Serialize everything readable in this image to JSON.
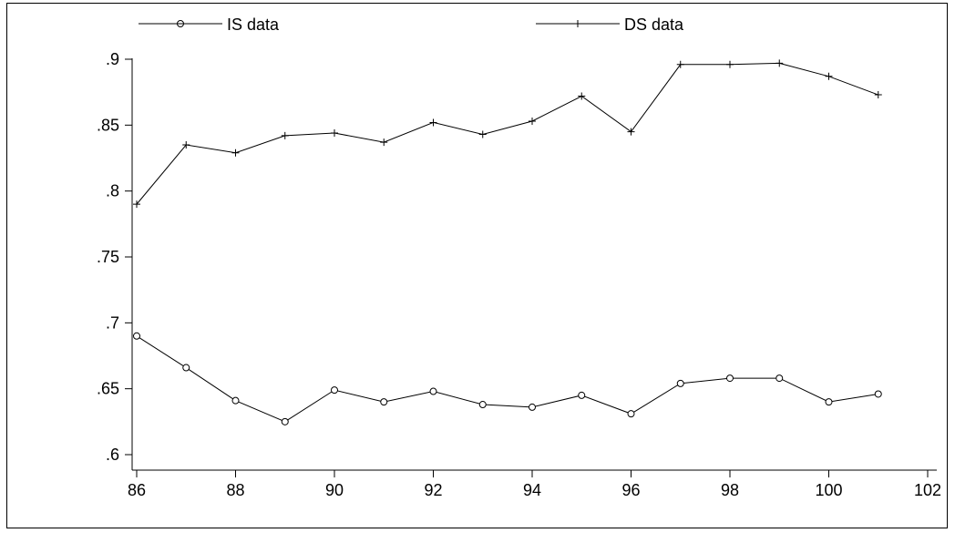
{
  "chart_data": {
    "type": "line",
    "x": [
      86,
      87,
      88,
      89,
      90,
      91,
      92,
      93,
      94,
      95,
      96,
      97,
      98,
      99,
      100,
      101
    ],
    "series": [
      {
        "name": "IS data",
        "marker": "circle",
        "values": [
          0.69,
          0.666,
          0.641,
          0.625,
          0.649,
          0.64,
          0.648,
          0.638,
          0.636,
          0.645,
          0.631,
          0.654,
          0.658,
          0.658,
          0.64,
          0.646
        ]
      },
      {
        "name": "DS data",
        "marker": "plus",
        "values": [
          0.79,
          0.835,
          0.829,
          0.842,
          0.844,
          0.837,
          0.852,
          0.843,
          0.853,
          0.872,
          0.845,
          0.896,
          0.896,
          0.897,
          0.887,
          0.873
        ]
      }
    ],
    "xticks": [
      "86",
      "88",
      "90",
      "92",
      "94",
      "96",
      "98",
      "100",
      "102"
    ],
    "yticks": [
      ".6",
      ".65",
      ".7",
      ".75",
      ".8",
      ".85",
      ".9"
    ],
    "xlim": [
      86,
      102
    ],
    "ylim": [
      0.6,
      0.9
    ],
    "title": "",
    "xlabel": "",
    "ylabel": "",
    "grid": false,
    "legend_position": "top",
    "line_color": "#000000"
  }
}
